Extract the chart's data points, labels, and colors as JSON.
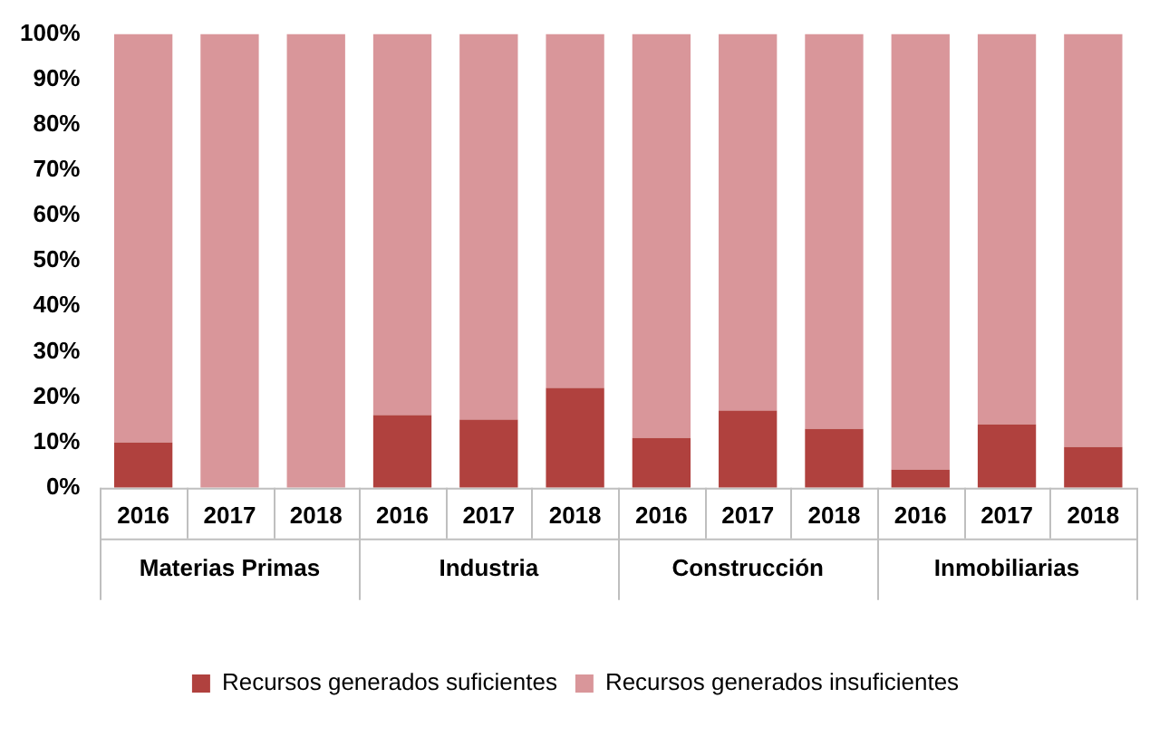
{
  "chart_data": {
    "type": "bar",
    "stacked": true,
    "categories": [
      "2016",
      "2017",
      "2018",
      "2016",
      "2017",
      "2018",
      "2016",
      "2017",
      "2018",
      "2016",
      "2017",
      "2018"
    ],
    "series": [
      {
        "name": "Recursos generados suficientes",
        "color": "#b0413e",
        "values": [
          10,
          0,
          0,
          16,
          15,
          22,
          11,
          17,
          13,
          4,
          14,
          9
        ]
      },
      {
        "name": "Recursos generados insuficientes",
        "color": "#d9969a",
        "values": [
          90,
          100,
          100,
          84,
          85,
          78,
          89,
          83,
          87,
          96,
          86,
          91
        ]
      }
    ],
    "annotations": [
      "Materias Primas",
      "Industria",
      "Construcción",
      "Inmobiliarias"
    ],
    "ylim": [
      0,
      100
    ],
    "yticks": [
      {
        "value": 0,
        "label": "0%"
      },
      {
        "value": 10,
        "label": "10%"
      },
      {
        "value": 20,
        "label": "20%"
      },
      {
        "value": 30,
        "label": "30%"
      },
      {
        "value": 40,
        "label": "40%"
      },
      {
        "value": 50,
        "label": "50%"
      },
      {
        "value": 60,
        "label": "60%"
      },
      {
        "value": 70,
        "label": "70%"
      },
      {
        "value": 80,
        "label": "80%"
      },
      {
        "value": 90,
        "label": "90%"
      },
      {
        "value": 100,
        "label": "100%"
      }
    ],
    "grid": false,
    "legend": "bottom"
  }
}
